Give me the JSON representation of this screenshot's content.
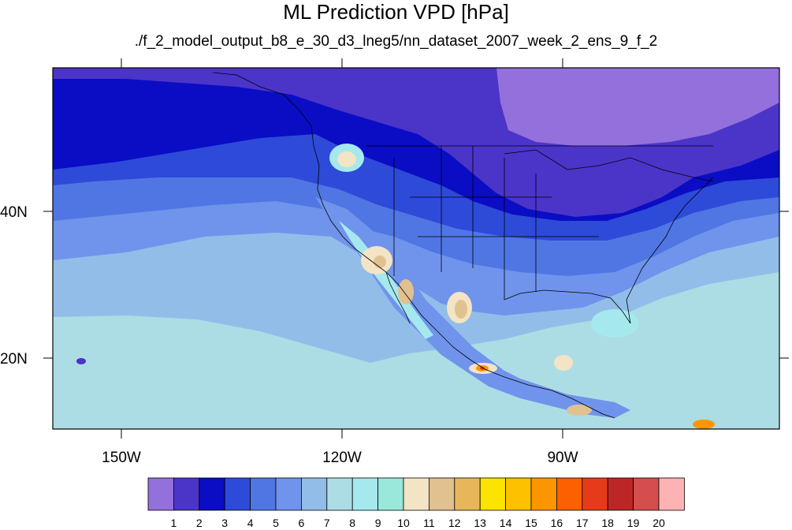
{
  "title": "ML Prediction VPD [hPa]",
  "subtitle": "./f_2_model_output_b8_e_30_d3_lneg5/nn_dataset_2007_week_2_ens_9_f_2",
  "x_axis": {
    "ticks": [
      "150W",
      "120W",
      "90W"
    ]
  },
  "y_axis": {
    "ticks": [
      "40N",
      "20N"
    ]
  },
  "colorbar": {
    "labels": [
      "1",
      "2",
      "3",
      "4",
      "5",
      "6",
      "7",
      "8",
      "9",
      "10",
      "11",
      "12",
      "13",
      "14",
      "15",
      "16",
      "17",
      "18",
      "19",
      "20"
    ],
    "colors": [
      "#9370db",
      "#4b34c8",
      "#0a0dc4",
      "#2e4ad8",
      "#4f76e3",
      "#7094ec",
      "#93bde9",
      "#acdde4",
      "#a5e9ef",
      "#9ae8dc",
      "#f2e4c4",
      "#e2c190",
      "#e8b65a",
      "#fde300",
      "#fdc100",
      "#fc9600",
      "#fb6100",
      "#e63b1a",
      "#bc2626",
      "#d44e4e",
      "#fdb3b3"
    ]
  },
  "field": {
    "description": "VPD contours over North America and the eastern Pacific",
    "colors": {
      "lavender": "#9370db",
      "indigo": "#4b34c8",
      "navy": "#0a0dc4",
      "blue": "#2e4ad8",
      "medium_blue": "#4f76e3",
      "light_blue": "#7094ec",
      "sky": "#93bde9",
      "pale": "#acdde4",
      "cyan": "#a5e9ef",
      "mint": "#9ae8dc",
      "sand": "#f2e4c4",
      "tan": "#e2c190",
      "orange": "#fc9600",
      "red": "#e63b1a"
    }
  }
}
